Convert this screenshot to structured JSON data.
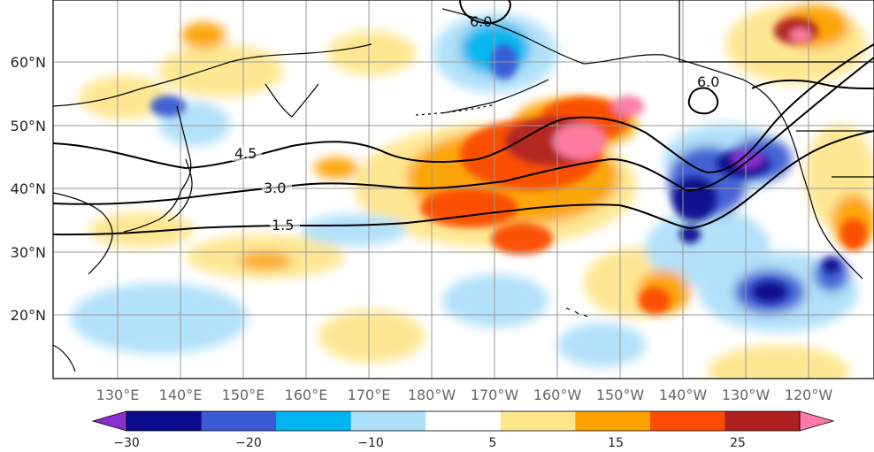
{
  "map": {
    "latitude_labels": [
      "60°N",
      "50°N",
      "40°N",
      "30°N",
      "20°N"
    ],
    "longitude_labels": [
      "130°E",
      "140°E",
      "150°E",
      "160°E",
      "170°E",
      "180°W",
      "170°W",
      "160°W",
      "150°W",
      "140°W",
      "130°W",
      "120°W"
    ],
    "contour_labels": [
      "4.5",
      "3.0",
      "1.5",
      "6.0",
      "6.0"
    ],
    "colorbar": {
      "tick_labels": [
        "−30",
        "−20",
        "−10",
        "5",
        "15",
        "25"
      ],
      "colors": [
        "#8b2fd0",
        "#0a0a8c",
        "#3a5ad2",
        "#00b4ef",
        "#aee0f9",
        "#ffffff",
        "#fee68d",
        "#fda200",
        "#fb4c00",
        "#b02020",
        "#fc7aa8"
      ]
    }
  }
}
